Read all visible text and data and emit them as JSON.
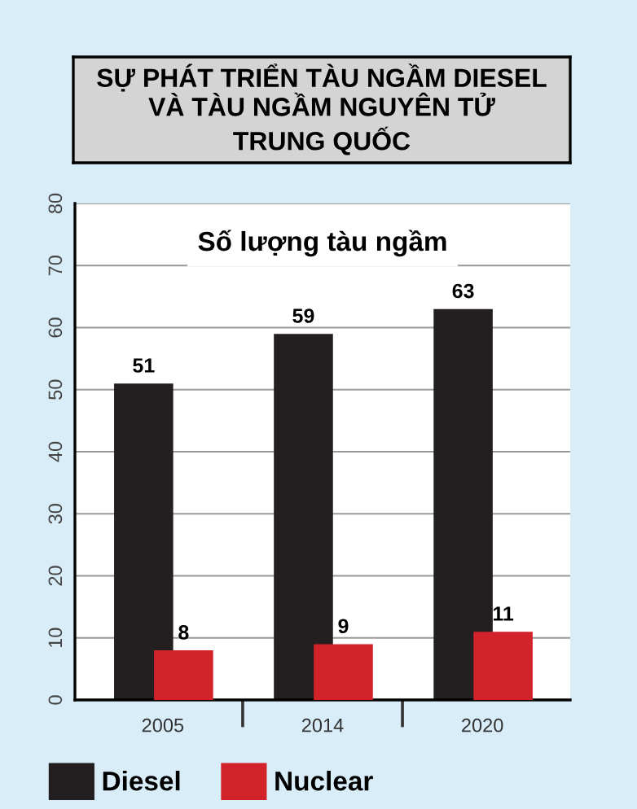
{
  "chart_data": {
    "type": "bar",
    "title": "SỰ PHÁT TRIỂN TÀU NGẦM DIESEL\nVÀ TÀU NGẦM NGUYÊN TỬ\nTRUNG QUỐC",
    "subtitle": "Số lượng tàu ngầm",
    "categories": [
      "2005",
      "2014",
      "2020"
    ],
    "series": [
      {
        "name": "Diesel",
        "color": "#231f20",
        "values": [
          51,
          59,
          63
        ]
      },
      {
        "name": "Nuclear",
        "color": "#d2232a",
        "values": [
          8,
          9,
          11
        ]
      }
    ],
    "ylim": [
      0,
      80
    ],
    "yticks": [
      0,
      10,
      20,
      30,
      40,
      50,
      60,
      70,
      80
    ],
    "grid": "y",
    "legend": "bottom left",
    "data_labels": true
  }
}
